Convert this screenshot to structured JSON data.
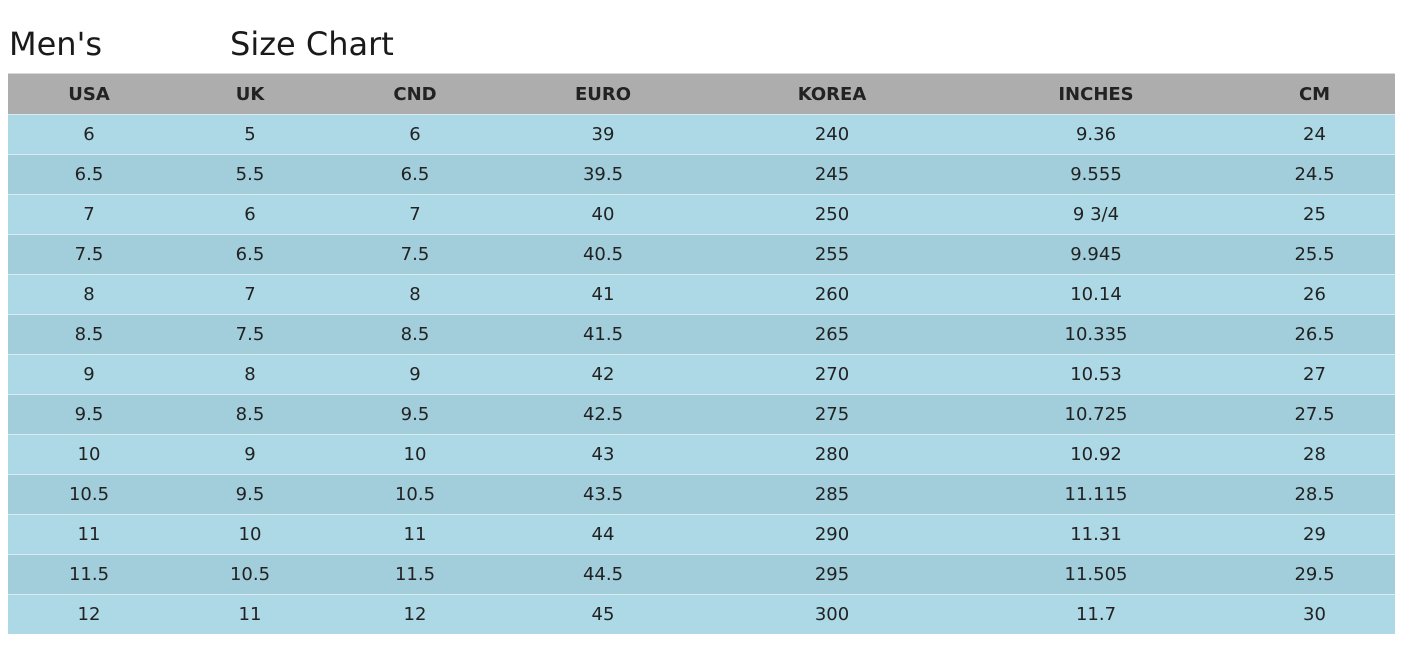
{
  "title": {
    "prefix": "Men's",
    "suffix": "Size Chart"
  },
  "columns": [
    "USA",
    "UK",
    "CND",
    "EURO",
    "KOREA",
    "INCHES",
    "CM"
  ],
  "rows": [
    [
      "6",
      "5",
      "6",
      "39",
      "240",
      "9.36",
      "24"
    ],
    [
      "6.5",
      "5.5",
      "6.5",
      "39.5",
      "245",
      "9.555",
      "24.5"
    ],
    [
      "7",
      "6",
      "7",
      "40",
      "250",
      "9 3/4",
      "25"
    ],
    [
      "7.5",
      "6.5",
      "7.5",
      "40.5",
      "255",
      "9.945",
      "25.5"
    ],
    [
      "8",
      "7",
      "8",
      "41",
      "260",
      "10.14",
      "26"
    ],
    [
      "8.5",
      "7.5",
      "8.5",
      "41.5",
      "265",
      "10.335",
      "26.5"
    ],
    [
      "9",
      "8",
      "9",
      "42",
      "270",
      "10.53",
      "27"
    ],
    [
      "9.5",
      "8.5",
      "9.5",
      "42.5",
      "275",
      "10.725",
      "27.5"
    ],
    [
      "10",
      "9",
      "10",
      "43",
      "280",
      "10.92",
      "28"
    ],
    [
      "10.5",
      "9.5",
      "10.5",
      "43.5",
      "285",
      "11.115",
      "28.5"
    ],
    [
      "11",
      "10",
      "11",
      "44",
      "290",
      "11.31",
      "29"
    ],
    [
      "11.5",
      "10.5",
      "11.5",
      "44.5",
      "295",
      "11.505",
      "29.5"
    ],
    [
      "12",
      "11",
      "12",
      "45",
      "300",
      "11.7",
      "30"
    ]
  ],
  "colors": {
    "header_bg": "#adadad",
    "row_light": "#add8e6",
    "row_dark": "#a2cdda"
  }
}
